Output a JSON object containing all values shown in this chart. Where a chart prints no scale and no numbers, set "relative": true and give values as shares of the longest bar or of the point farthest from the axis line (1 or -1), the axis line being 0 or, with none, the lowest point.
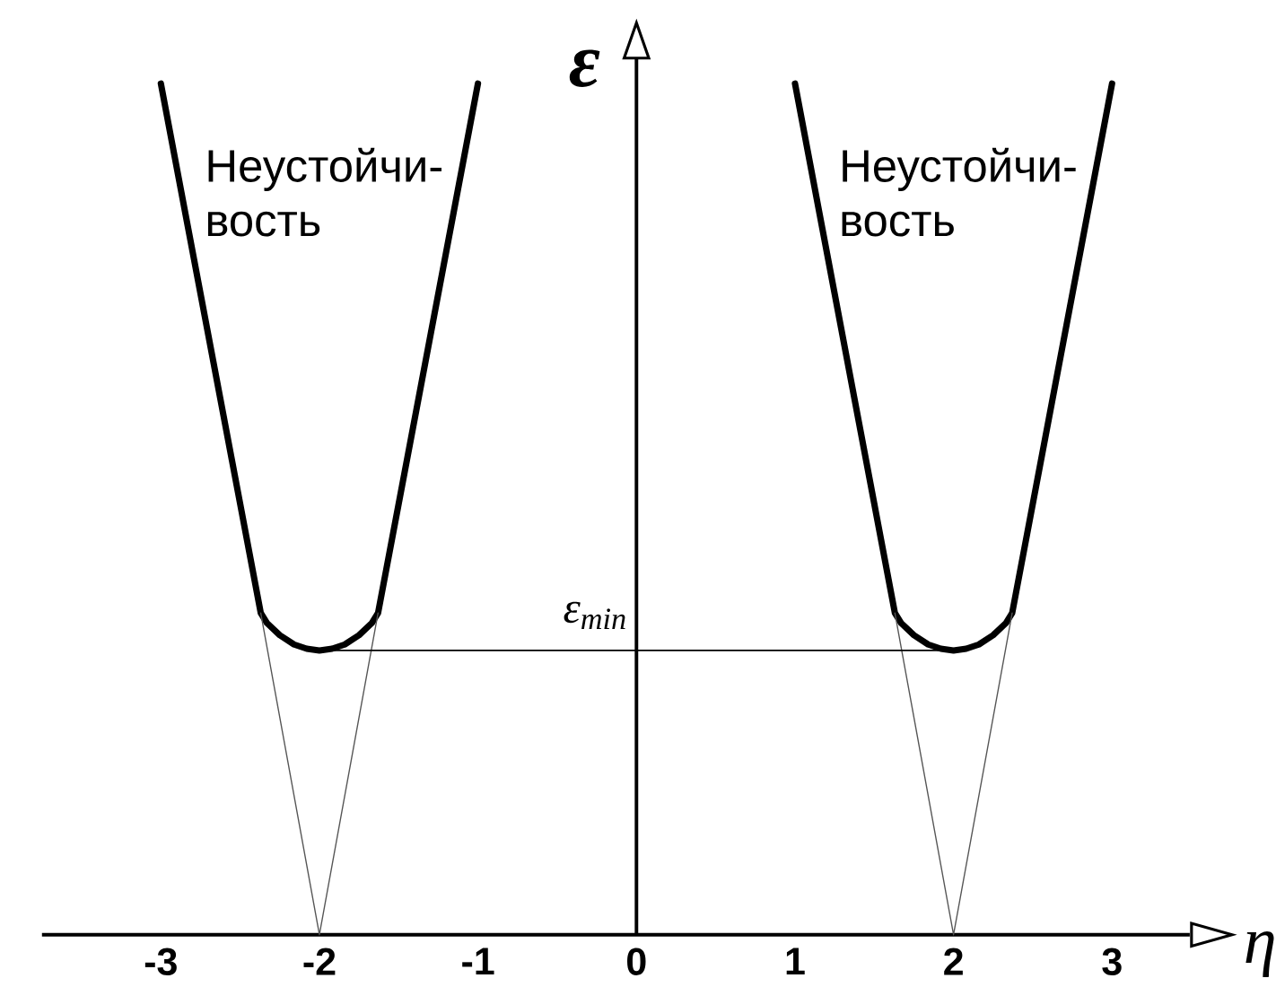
{
  "chart_data": {
    "type": "line",
    "relative": true,
    "xlabel": "η",
    "ylabel": "ε",
    "xlim": [
      -3.75,
      3.49
    ],
    "xticks": [
      -3,
      -2,
      -1,
      0,
      1,
      2,
      3
    ],
    "annotations": [
      "Неустойчи-вость",
      "Неустойчи-вость"
    ],
    "ref_lines": [
      {
        "axis": "y",
        "value": 0.334,
        "label": "ε$_{min}$",
        "color": "#000000"
      }
    ],
    "series": [
      {
        "color": "#000000",
        "x": [
          -3,
          -2.37,
          -2.33,
          -2.25,
          -2.16,
          -2.08,
          -2,
          -1.92,
          -1.84,
          -1.75,
          -1.67,
          -1.63,
          -1
        ],
        "values": [
          1,
          0.378,
          0.366,
          0.352,
          0.341,
          0.336,
          0.334,
          0.336,
          0.341,
          0.352,
          0.366,
          0.378,
          1
        ]
      },
      {
        "color": "#000000",
        "x": [
          1,
          1.63,
          1.67,
          1.75,
          1.84,
          1.92,
          2,
          2.08,
          2.16,
          2.25,
          2.33,
          2.37,
          3
        ],
        "values": [
          1,
          0.378,
          0.366,
          0.352,
          0.341,
          0.336,
          0.334,
          0.336,
          0.341,
          0.352,
          0.366,
          0.378,
          1
        ]
      },
      {
        "color": "#555555",
        "x": [
          -2.37,
          -2,
          -1.63
        ],
        "values": [
          0.378,
          0,
          0.378
        ]
      },
      {
        "color": "#555555",
        "x": [
          1.63,
          2,
          2.37
        ],
        "values": [
          0.378,
          0,
          0.378
        ]
      }
    ]
  }
}
